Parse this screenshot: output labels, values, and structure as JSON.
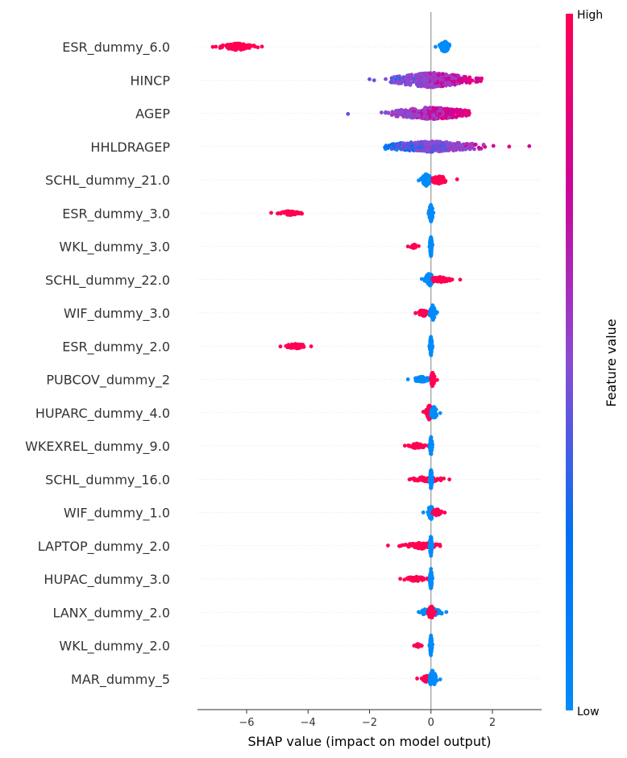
{
  "chart_data": {
    "type": "scatter",
    "subtype": "shap-beeswarm",
    "xlabel": "SHAP value (impact on model output)",
    "xlim": [
      -7.6,
      3.6
    ],
    "xticks": [
      -6,
      -4,
      -2,
      0,
      2
    ],
    "xtick_labels": [
      "−6",
      "−4",
      "−2",
      "0",
      "2"
    ],
    "grid": false,
    "zero_line": true,
    "colorbar": {
      "label": "Feature value",
      "high_label": "High",
      "low_label": "Low",
      "low_color": "#008bfb",
      "high_color": "#ff0052",
      "placement": "right"
    },
    "features": [
      {
        "name": "ESR_dummy_6.0",
        "clusters": [
          {
            "min": -7.1,
            "max": -5.5,
            "center": -6.3,
            "width": 0.25,
            "color": "high",
            "n": 140
          },
          {
            "min": 0.15,
            "max": 0.6,
            "center": 0.45,
            "width": 0.4,
            "color": "low",
            "n": 110
          }
        ]
      },
      {
        "name": "HINCP",
        "clusters": [
          {
            "min": -2.0,
            "max": 1.65,
            "center": 0.0,
            "width": 0.55,
            "color": "mix",
            "n": 420
          }
        ]
      },
      {
        "name": "AGEP",
        "clusters": [
          {
            "min": -2.7,
            "max": 1.25,
            "center": 0.0,
            "width": 0.45,
            "color": "mix",
            "n": 360
          }
        ]
      },
      {
        "name": "HHLDRAGEP",
        "clusters": [
          {
            "min": -1.5,
            "max": 3.2,
            "center": 0.0,
            "width": 0.4,
            "color": "mix",
            "n": 360
          }
        ]
      },
      {
        "name": "SCHL_dummy_21.0",
        "clusters": [
          {
            "min": -0.4,
            "max": 0.0,
            "center": -0.15,
            "width": 0.45,
            "color": "low",
            "n": 120
          },
          {
            "min": 0.05,
            "max": 0.85,
            "center": 0.25,
            "width": 0.3,
            "color": "high",
            "n": 70
          }
        ]
      },
      {
        "name": "ESR_dummy_3.0",
        "clusters": [
          {
            "min": -5.2,
            "max": -4.2,
            "center": -4.6,
            "width": 0.15,
            "color": "high",
            "n": 80
          },
          {
            "min": -0.08,
            "max": 0.08,
            "center": 0.0,
            "width": 0.7,
            "color": "low",
            "n": 80
          }
        ]
      },
      {
        "name": "WKL_dummy_3.0",
        "clusters": [
          {
            "min": -0.75,
            "max": -0.4,
            "center": -0.55,
            "width": 0.15,
            "color": "high",
            "n": 30
          },
          {
            "min": -0.05,
            "max": 0.05,
            "center": 0.0,
            "width": 0.75,
            "color": "low",
            "n": 80
          }
        ]
      },
      {
        "name": "SCHL_dummy_22.0",
        "clusters": [
          {
            "min": -0.3,
            "max": 0.05,
            "center": -0.05,
            "width": 0.5,
            "color": "low",
            "n": 90
          },
          {
            "min": 0.05,
            "max": 0.95,
            "center": 0.3,
            "width": 0.2,
            "color": "high",
            "n": 70
          }
        ]
      },
      {
        "name": "WIF_dummy_3.0",
        "clusters": [
          {
            "min": -0.5,
            "max": -0.05,
            "center": -0.25,
            "width": 0.25,
            "color": "high",
            "n": 50
          },
          {
            "min": -0.05,
            "max": 0.2,
            "center": 0.05,
            "width": 0.6,
            "color": "low",
            "n": 80
          }
        ]
      },
      {
        "name": "ESR_dummy_2.0",
        "clusters": [
          {
            "min": -4.9,
            "max": -3.9,
            "center": -4.4,
            "width": 0.18,
            "color": "high",
            "n": 80
          },
          {
            "min": -0.05,
            "max": 0.05,
            "center": 0.0,
            "width": 0.7,
            "color": "low",
            "n": 80
          }
        ]
      },
      {
        "name": "PUBCOV_dummy_2",
        "clusters": [
          {
            "min": -0.75,
            "max": -0.05,
            "center": -0.3,
            "width": 0.2,
            "color": "low",
            "n": 70
          },
          {
            "min": 0.0,
            "max": 0.2,
            "center": 0.05,
            "width": 0.5,
            "color": "high",
            "n": 60
          }
        ]
      },
      {
        "name": "HUPARC_dummy_4.0",
        "clusters": [
          {
            "min": -0.25,
            "max": 0.05,
            "center": -0.05,
            "width": 0.55,
            "color": "high",
            "n": 70
          },
          {
            "min": 0.0,
            "max": 0.3,
            "center": 0.1,
            "width": 0.45,
            "color": "low",
            "n": 60
          }
        ]
      },
      {
        "name": "WKEXREL_dummy_9.0",
        "clusters": [
          {
            "min": -0.85,
            "max": -0.05,
            "center": -0.45,
            "width": 0.18,
            "color": "high",
            "n": 60
          },
          {
            "min": -0.05,
            "max": 0.05,
            "center": 0.0,
            "width": 0.7,
            "color": "low",
            "n": 80
          }
        ]
      },
      {
        "name": "SCHL_dummy_16.0",
        "clusters": [
          {
            "min": -0.7,
            "max": 0.6,
            "center": -0.1,
            "width": 0.2,
            "color": "high",
            "n": 70
          },
          {
            "min": -0.05,
            "max": 0.05,
            "center": 0.0,
            "width": 0.75,
            "color": "low",
            "n": 80
          }
        ]
      },
      {
        "name": "WIF_dummy_1.0",
        "clusters": [
          {
            "min": -0.25,
            "max": 0.05,
            "center": 0.0,
            "width": 0.55,
            "color": "low",
            "n": 70
          },
          {
            "min": 0.05,
            "max": 0.45,
            "center": 0.2,
            "width": 0.25,
            "color": "high",
            "n": 50
          }
        ]
      },
      {
        "name": "LAPTOP_dummy_2.0",
        "clusters": [
          {
            "min": -1.4,
            "max": 0.3,
            "center": -0.3,
            "width": 0.22,
            "color": "high",
            "n": 90
          },
          {
            "min": -0.05,
            "max": 0.05,
            "center": 0.0,
            "width": 0.75,
            "color": "low",
            "n": 80
          }
        ]
      },
      {
        "name": "HUPAC_dummy_3.0",
        "clusters": [
          {
            "min": -1.0,
            "max": -0.05,
            "center": -0.5,
            "width": 0.18,
            "color": "high",
            "n": 70
          },
          {
            "min": -0.05,
            "max": 0.05,
            "center": 0.0,
            "width": 0.75,
            "color": "low",
            "n": 80
          }
        ]
      },
      {
        "name": "LANX_dummy_2.0",
        "clusters": [
          {
            "min": -0.4,
            "max": 0.5,
            "center": 0.0,
            "width": 0.35,
            "color": "low",
            "n": 60
          },
          {
            "min": -0.1,
            "max": 0.15,
            "center": 0.0,
            "width": 0.55,
            "color": "high",
            "n": 60
          }
        ]
      },
      {
        "name": "WKL_dummy_2.0",
        "clusters": [
          {
            "min": -0.55,
            "max": -0.3,
            "center": -0.42,
            "width": 0.12,
            "color": "high",
            "n": 25
          },
          {
            "min": -0.05,
            "max": 0.05,
            "center": 0.0,
            "width": 0.75,
            "color": "low",
            "n": 80
          }
        ]
      },
      {
        "name": "MAR_dummy_5",
        "clusters": [
          {
            "min": -0.45,
            "max": 0.05,
            "center": -0.15,
            "width": 0.25,
            "color": "high",
            "n": 50
          },
          {
            "min": -0.05,
            "max": 0.3,
            "center": 0.05,
            "width": 0.6,
            "color": "low",
            "n": 70
          }
        ]
      }
    ]
  }
}
